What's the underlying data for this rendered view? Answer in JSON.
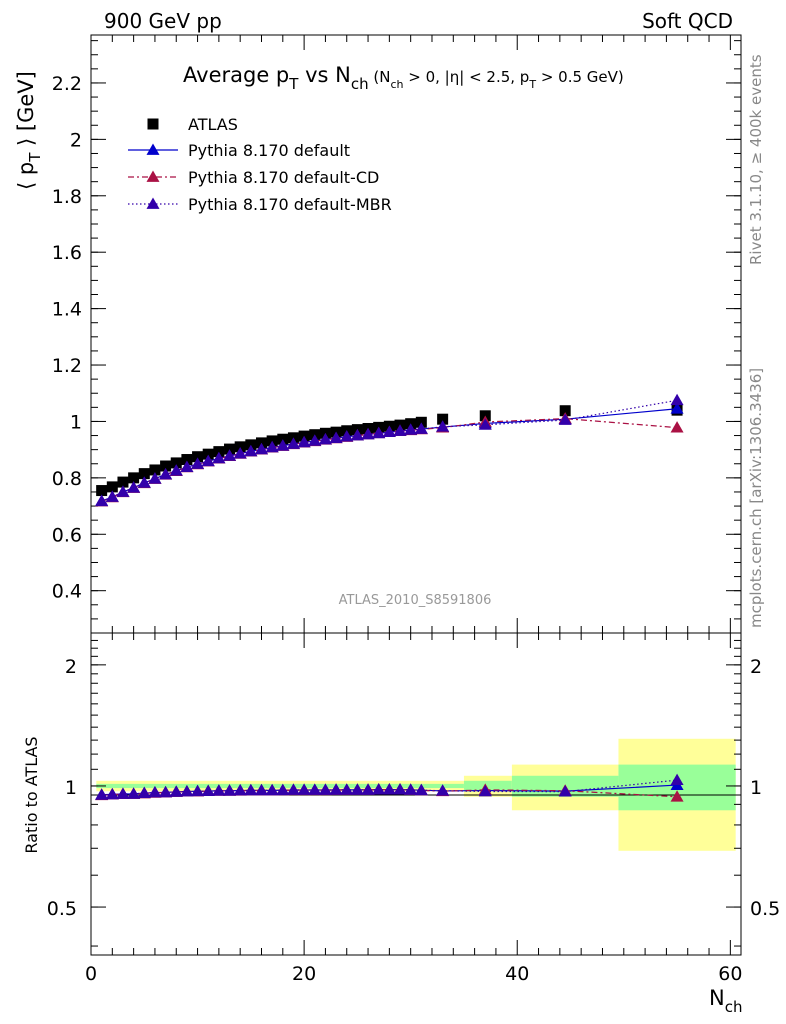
{
  "header": {
    "left": "900 GeV pp",
    "right": "Soft QCD"
  },
  "side_notes": {
    "top": "Rivet 3.1.10, ≥ 400k events",
    "bottom": "mcplots.cern.ch [arXiv:1306.3436]"
  },
  "watermark": "ATLAS_2010_S8591806",
  "colors": {
    "data": "#000000",
    "default": "#0000cc",
    "cd": "#aa1144",
    "mbr": "#3300aa",
    "band_inner": "#99ff99",
    "band_outer": "#ffff99"
  },
  "chart_data": [
    {
      "type": "scatter",
      "title": {
        "main": "Average p",
        "sub1": "T",
        "mid": " vs N",
        "sub2": "ch",
        "cond_a": " (N",
        "cond_sub1": "ch",
        "cond_b": " > 0, |η| < 2.5, p",
        "cond_sub2": "T",
        "cond_c": " > 0.5 GeV)"
      },
      "ylabel": {
        "a": "⟨ p",
        "sub": "T",
        "b": " ⟩ [GeV]"
      },
      "xlim": [
        0,
        61
      ],
      "ylim": [
        0.25,
        2.37
      ],
      "yticks": [
        "0.4",
        "0.6",
        "0.8",
        "1",
        "1.2",
        "1.4",
        "1.6",
        "1.8",
        "2",
        "2.2"
      ],
      "series": [
        {
          "name": "ATLAS",
          "style": "data",
          "x": [
            1,
            2,
            3,
            4,
            5,
            6,
            7,
            8,
            9,
            10,
            11,
            12,
            13,
            14,
            15,
            16,
            17,
            18,
            19,
            20,
            21,
            22,
            23,
            24,
            25,
            26,
            27,
            28,
            29,
            30,
            31,
            33,
            37,
            44.5,
            55
          ],
          "y": [
            0.755,
            0.768,
            0.785,
            0.8,
            0.815,
            0.828,
            0.842,
            0.853,
            0.865,
            0.875,
            0.884,
            0.893,
            0.902,
            0.91,
            0.917,
            0.924,
            0.931,
            0.937,
            0.942,
            0.948,
            0.953,
            0.958,
            0.962,
            0.967,
            0.971,
            0.975,
            0.979,
            0.983,
            0.987,
            0.992,
            0.997,
            1.008,
            1.02,
            1.038,
            1.04
          ]
        },
        {
          "name": "Pythia 8.170 default",
          "style": "default",
          "x": [
            1,
            2,
            3,
            4,
            5,
            6,
            7,
            8,
            9,
            10,
            11,
            12,
            13,
            14,
            15,
            16,
            17,
            18,
            19,
            20,
            21,
            22,
            23,
            24,
            25,
            26,
            27,
            28,
            29,
            30,
            31,
            33,
            37,
            44.5,
            55
          ],
          "y": [
            0.718,
            0.732,
            0.75,
            0.765,
            0.782,
            0.797,
            0.812,
            0.825,
            0.838,
            0.849,
            0.859,
            0.869,
            0.878,
            0.886,
            0.894,
            0.901,
            0.908,
            0.914,
            0.92,
            0.926,
            0.931,
            0.936,
            0.941,
            0.946,
            0.95,
            0.954,
            0.958,
            0.962,
            0.966,
            0.97,
            0.973,
            0.98,
            0.993,
            1.008,
            1.045
          ]
        },
        {
          "name": "Pythia 8.170 default-CD",
          "style": "cd",
          "x": [
            1,
            2,
            3,
            4,
            5,
            6,
            7,
            8,
            9,
            10,
            11,
            12,
            13,
            14,
            15,
            16,
            17,
            18,
            19,
            20,
            21,
            22,
            23,
            24,
            25,
            26,
            27,
            28,
            29,
            30,
            31,
            33,
            37,
            44.5,
            55
          ],
          "y": [
            0.716,
            0.731,
            0.749,
            0.764,
            0.781,
            0.796,
            0.811,
            0.824,
            0.837,
            0.848,
            0.858,
            0.868,
            0.877,
            0.885,
            0.893,
            0.9,
            0.907,
            0.913,
            0.919,
            0.925,
            0.93,
            0.935,
            0.94,
            0.945,
            0.95,
            0.954,
            0.958,
            0.962,
            0.966,
            0.969,
            0.972,
            0.978,
            0.998,
            1.01,
            0.978
          ]
        },
        {
          "name": "Pythia 8.170 default-MBR",
          "style": "mbr",
          "x": [
            1,
            2,
            3,
            4,
            5,
            6,
            7,
            8,
            9,
            10,
            11,
            12,
            13,
            14,
            15,
            16,
            17,
            18,
            19,
            20,
            21,
            22,
            23,
            24,
            25,
            26,
            27,
            28,
            29,
            30,
            31,
            33,
            37,
            44.5,
            55
          ],
          "y": [
            0.717,
            0.732,
            0.75,
            0.765,
            0.782,
            0.797,
            0.812,
            0.825,
            0.838,
            0.849,
            0.859,
            0.869,
            0.878,
            0.886,
            0.894,
            0.901,
            0.908,
            0.914,
            0.92,
            0.926,
            0.931,
            0.936,
            0.941,
            0.946,
            0.95,
            0.954,
            0.958,
            0.962,
            0.966,
            0.97,
            0.973,
            0.981,
            0.988,
            1.005,
            1.075
          ]
        }
      ]
    },
    {
      "type": "scatter",
      "ylabel": "Ratio to ATLAS",
      "xlabel": {
        "a": "N",
        "sub": "ch"
      },
      "xlim": [
        0,
        61
      ],
      "ylim": [
        0.38,
        2.4
      ],
      "log_y": true,
      "yticks": [
        "0.5",
        "1",
        "2"
      ],
      "xticks": [
        "0",
        "20",
        "40",
        "60"
      ],
      "uncertainty_bands": [
        {
          "x_lo": 0.5,
          "x_hi": 35,
          "inner": 0.012,
          "outer": 0.03
        },
        {
          "x_lo": 35,
          "x_hi": 39.5,
          "inner": 0.03,
          "outer": 0.06
        },
        {
          "x_lo": 39.5,
          "x_hi": 49.5,
          "inner": 0.06,
          "outer": 0.13
        },
        {
          "x_lo": 49.5,
          "x_hi": 60.5,
          "inner": 0.13,
          "outer": 0.31
        }
      ],
      "series": [
        {
          "name": "Pythia 8.170 default",
          "style": "default",
          "x": [
            1,
            2,
            3,
            4,
            5,
            6,
            7,
            8,
            9,
            10,
            11,
            12,
            13,
            14,
            15,
            16,
            17,
            18,
            19,
            20,
            21,
            22,
            23,
            24,
            25,
            26,
            27,
            28,
            29,
            30,
            31,
            33,
            37,
            44.5,
            55
          ],
          "y": [
            0.951,
            0.953,
            0.955,
            0.956,
            0.96,
            0.963,
            0.964,
            0.967,
            0.969,
            0.97,
            0.971,
            0.973,
            0.973,
            0.974,
            0.975,
            0.975,
            0.975,
            0.976,
            0.977,
            0.977,
            0.977,
            0.977,
            0.978,
            0.978,
            0.978,
            0.978,
            0.979,
            0.979,
            0.979,
            0.978,
            0.976,
            0.972,
            0.974,
            0.971,
            1.005
          ]
        },
        {
          "name": "Pythia 8.170 default-CD",
          "style": "cd",
          "x": [
            1,
            2,
            3,
            4,
            5,
            6,
            7,
            8,
            9,
            10,
            11,
            12,
            13,
            14,
            15,
            16,
            17,
            18,
            19,
            20,
            21,
            22,
            23,
            24,
            25,
            26,
            27,
            28,
            29,
            30,
            31,
            33,
            37,
            44.5,
            55
          ],
          "y": [
            0.948,
            0.952,
            0.954,
            0.955,
            0.958,
            0.961,
            0.963,
            0.966,
            0.968,
            0.969,
            0.971,
            0.972,
            0.972,
            0.973,
            0.974,
            0.974,
            0.974,
            0.975,
            0.976,
            0.976,
            0.976,
            0.976,
            0.977,
            0.977,
            0.978,
            0.978,
            0.979,
            0.979,
            0.979,
            0.977,
            0.975,
            0.97,
            0.978,
            0.973,
            0.94
          ]
        },
        {
          "name": "Pythia 8.170 default-MBR",
          "style": "mbr",
          "x": [
            1,
            2,
            3,
            4,
            5,
            6,
            7,
            8,
            9,
            10,
            11,
            12,
            13,
            14,
            15,
            16,
            17,
            18,
            19,
            20,
            21,
            22,
            23,
            24,
            25,
            26,
            27,
            28,
            29,
            30,
            31,
            33,
            37,
            44.5,
            55
          ],
          "y": [
            0.95,
            0.953,
            0.955,
            0.956,
            0.96,
            0.963,
            0.964,
            0.967,
            0.969,
            0.97,
            0.971,
            0.973,
            0.973,
            0.974,
            0.975,
            0.975,
            0.975,
            0.976,
            0.977,
            0.977,
            0.977,
            0.977,
            0.978,
            0.978,
            0.978,
            0.978,
            0.979,
            0.979,
            0.979,
            0.978,
            0.976,
            0.973,
            0.969,
            0.968,
            1.034
          ]
        }
      ]
    }
  ]
}
